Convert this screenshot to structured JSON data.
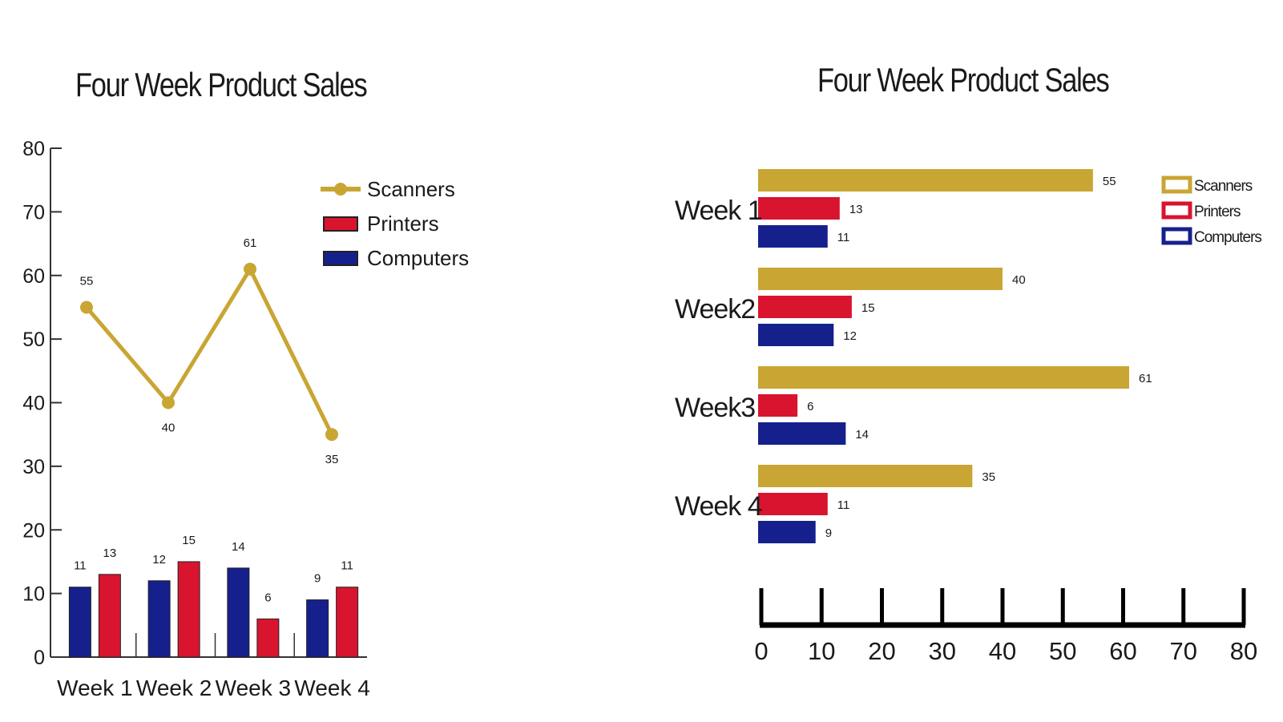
{
  "colors": {
    "scanners": "#c9a633",
    "printers": "#d8142f",
    "computers": "#16208c",
    "axis_left": "#333333",
    "axis_right": "#000000"
  },
  "chart_data": [
    {
      "type": "line+bar",
      "title": "Four Week Product Sales",
      "categories": [
        "Week 1",
        "Week 2",
        "Week 3",
        "Week 4"
      ],
      "yticks": [
        "0",
        "10",
        "20",
        "30",
        "40",
        "50",
        "60",
        "70",
        "80"
      ],
      "ylim": [
        0,
        80
      ],
      "legend": {
        "placement": "top-right",
        "entries": [
          "Scanners",
          "Printers",
          "Computers"
        ]
      },
      "series": [
        {
          "name": "Scanners",
          "chart": "line",
          "values": [
            55,
            40,
            61,
            35
          ],
          "labels": [
            "55",
            "40",
            "61",
            "35"
          ]
        },
        {
          "name": "Printers",
          "chart": "bar",
          "values": [
            13,
            15,
            6,
            11
          ],
          "labels": [
            "13",
            "15",
            "6",
            "11"
          ]
        },
        {
          "name": "Computers",
          "chart": "bar",
          "values": [
            11,
            12,
            14,
            9
          ],
          "labels": [
            "11",
            "12",
            "14",
            "9"
          ]
        }
      ],
      "grid": false
    },
    {
      "type": "bar",
      "orientation": "horizontal",
      "title": "Four Week Product Sales",
      "categories": [
        "Week 1",
        "Week2",
        "Week3",
        "Week 4"
      ],
      "xticks": [
        "0",
        "10",
        "20",
        "30",
        "40",
        "50",
        "60",
        "70",
        "80"
      ],
      "xlim": [
        0,
        80
      ],
      "legend": {
        "placement": "top-right",
        "entries": [
          "Scanners",
          "Printers",
          "Computers"
        ]
      },
      "series": [
        {
          "name": "Scanners",
          "values": [
            55,
            40,
            61,
            35
          ],
          "labels": [
            "55",
            "40",
            "61",
            "35"
          ]
        },
        {
          "name": "Printers",
          "values": [
            13,
            15,
            6,
            11
          ],
          "labels": [
            "13",
            "15",
            "6",
            "11"
          ]
        },
        {
          "name": "Computers",
          "values": [
            11,
            12,
            14,
            9
          ],
          "labels": [
            "11",
            "12",
            "14",
            "9"
          ]
        }
      ],
      "grid": false
    }
  ]
}
